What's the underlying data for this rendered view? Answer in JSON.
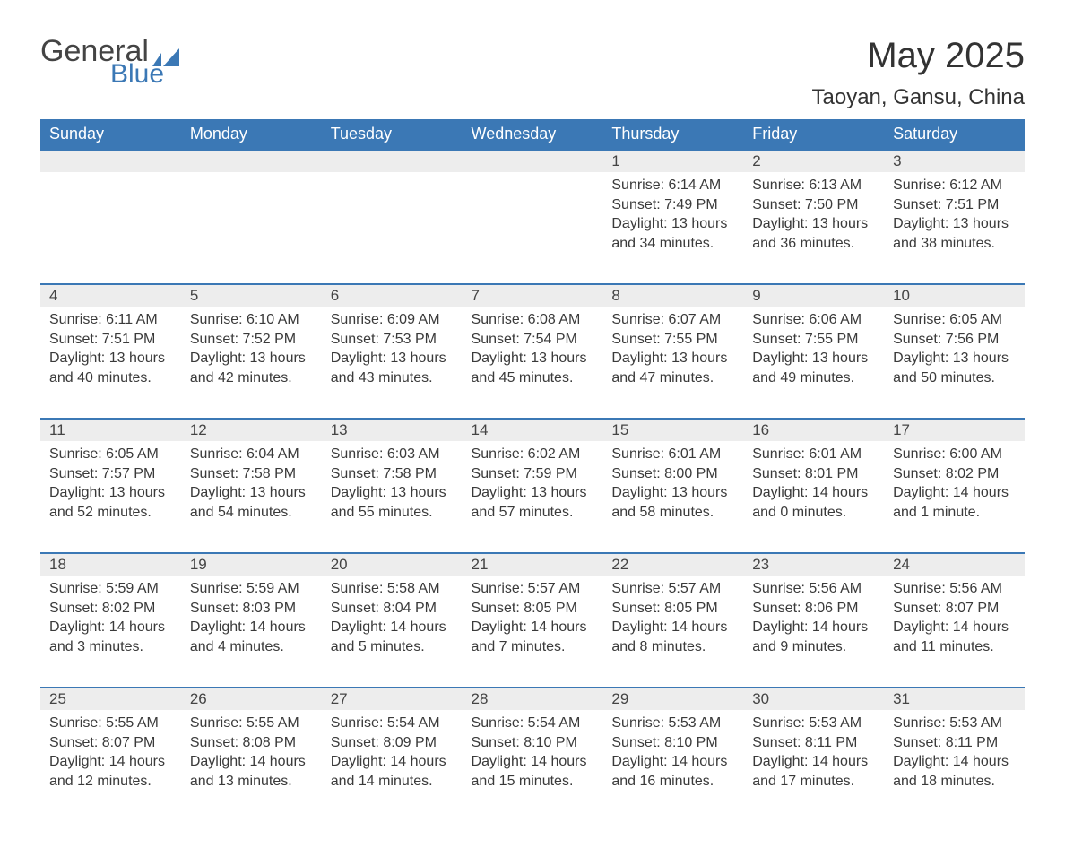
{
  "logo": {
    "general": "General",
    "blue": "Blue",
    "flag_color": "#3b78b5"
  },
  "title": "May 2025",
  "location": "Taoyan, Gansu, China",
  "colors": {
    "header_bg": "#3b78b5",
    "header_text": "#ffffff",
    "daynum_bg": "#ededed",
    "border": "#3b78b5",
    "text": "#3a3a3a"
  },
  "weekdays": [
    "Sunday",
    "Monday",
    "Tuesday",
    "Wednesday",
    "Thursday",
    "Friday",
    "Saturday"
  ],
  "weeks": [
    [
      null,
      null,
      null,
      null,
      {
        "n": "1",
        "sr": "Sunrise: 6:14 AM",
        "ss": "Sunset: 7:49 PM",
        "dl": "Daylight: 13 hours and 34 minutes."
      },
      {
        "n": "2",
        "sr": "Sunrise: 6:13 AM",
        "ss": "Sunset: 7:50 PM",
        "dl": "Daylight: 13 hours and 36 minutes."
      },
      {
        "n": "3",
        "sr": "Sunrise: 6:12 AM",
        "ss": "Sunset: 7:51 PM",
        "dl": "Daylight: 13 hours and 38 minutes."
      }
    ],
    [
      {
        "n": "4",
        "sr": "Sunrise: 6:11 AM",
        "ss": "Sunset: 7:51 PM",
        "dl": "Daylight: 13 hours and 40 minutes."
      },
      {
        "n": "5",
        "sr": "Sunrise: 6:10 AM",
        "ss": "Sunset: 7:52 PM",
        "dl": "Daylight: 13 hours and 42 minutes."
      },
      {
        "n": "6",
        "sr": "Sunrise: 6:09 AM",
        "ss": "Sunset: 7:53 PM",
        "dl": "Daylight: 13 hours and 43 minutes."
      },
      {
        "n": "7",
        "sr": "Sunrise: 6:08 AM",
        "ss": "Sunset: 7:54 PM",
        "dl": "Daylight: 13 hours and 45 minutes."
      },
      {
        "n": "8",
        "sr": "Sunrise: 6:07 AM",
        "ss": "Sunset: 7:55 PM",
        "dl": "Daylight: 13 hours and 47 minutes."
      },
      {
        "n": "9",
        "sr": "Sunrise: 6:06 AM",
        "ss": "Sunset: 7:55 PM",
        "dl": "Daylight: 13 hours and 49 minutes."
      },
      {
        "n": "10",
        "sr": "Sunrise: 6:05 AM",
        "ss": "Sunset: 7:56 PM",
        "dl": "Daylight: 13 hours and 50 minutes."
      }
    ],
    [
      {
        "n": "11",
        "sr": "Sunrise: 6:05 AM",
        "ss": "Sunset: 7:57 PM",
        "dl": "Daylight: 13 hours and 52 minutes."
      },
      {
        "n": "12",
        "sr": "Sunrise: 6:04 AM",
        "ss": "Sunset: 7:58 PM",
        "dl": "Daylight: 13 hours and 54 minutes."
      },
      {
        "n": "13",
        "sr": "Sunrise: 6:03 AM",
        "ss": "Sunset: 7:58 PM",
        "dl": "Daylight: 13 hours and 55 minutes."
      },
      {
        "n": "14",
        "sr": "Sunrise: 6:02 AM",
        "ss": "Sunset: 7:59 PM",
        "dl": "Daylight: 13 hours and 57 minutes."
      },
      {
        "n": "15",
        "sr": "Sunrise: 6:01 AM",
        "ss": "Sunset: 8:00 PM",
        "dl": "Daylight: 13 hours and 58 minutes."
      },
      {
        "n": "16",
        "sr": "Sunrise: 6:01 AM",
        "ss": "Sunset: 8:01 PM",
        "dl": "Daylight: 14 hours and 0 minutes."
      },
      {
        "n": "17",
        "sr": "Sunrise: 6:00 AM",
        "ss": "Sunset: 8:02 PM",
        "dl": "Daylight: 14 hours and 1 minute."
      }
    ],
    [
      {
        "n": "18",
        "sr": "Sunrise: 5:59 AM",
        "ss": "Sunset: 8:02 PM",
        "dl": "Daylight: 14 hours and 3 minutes."
      },
      {
        "n": "19",
        "sr": "Sunrise: 5:59 AM",
        "ss": "Sunset: 8:03 PM",
        "dl": "Daylight: 14 hours and 4 minutes."
      },
      {
        "n": "20",
        "sr": "Sunrise: 5:58 AM",
        "ss": "Sunset: 8:04 PM",
        "dl": "Daylight: 14 hours and 5 minutes."
      },
      {
        "n": "21",
        "sr": "Sunrise: 5:57 AM",
        "ss": "Sunset: 8:05 PM",
        "dl": "Daylight: 14 hours and 7 minutes."
      },
      {
        "n": "22",
        "sr": "Sunrise: 5:57 AM",
        "ss": "Sunset: 8:05 PM",
        "dl": "Daylight: 14 hours and 8 minutes."
      },
      {
        "n": "23",
        "sr": "Sunrise: 5:56 AM",
        "ss": "Sunset: 8:06 PM",
        "dl": "Daylight: 14 hours and 9 minutes."
      },
      {
        "n": "24",
        "sr": "Sunrise: 5:56 AM",
        "ss": "Sunset: 8:07 PM",
        "dl": "Daylight: 14 hours and 11 minutes."
      }
    ],
    [
      {
        "n": "25",
        "sr": "Sunrise: 5:55 AM",
        "ss": "Sunset: 8:07 PM",
        "dl": "Daylight: 14 hours and 12 minutes."
      },
      {
        "n": "26",
        "sr": "Sunrise: 5:55 AM",
        "ss": "Sunset: 8:08 PM",
        "dl": "Daylight: 14 hours and 13 minutes."
      },
      {
        "n": "27",
        "sr": "Sunrise: 5:54 AM",
        "ss": "Sunset: 8:09 PM",
        "dl": "Daylight: 14 hours and 14 minutes."
      },
      {
        "n": "28",
        "sr": "Sunrise: 5:54 AM",
        "ss": "Sunset: 8:10 PM",
        "dl": "Daylight: 14 hours and 15 minutes."
      },
      {
        "n": "29",
        "sr": "Sunrise: 5:53 AM",
        "ss": "Sunset: 8:10 PM",
        "dl": "Daylight: 14 hours and 16 minutes."
      },
      {
        "n": "30",
        "sr": "Sunrise: 5:53 AM",
        "ss": "Sunset: 8:11 PM",
        "dl": "Daylight: 14 hours and 17 minutes."
      },
      {
        "n": "31",
        "sr": "Sunrise: 5:53 AM",
        "ss": "Sunset: 8:11 PM",
        "dl": "Daylight: 14 hours and 18 minutes."
      }
    ]
  ]
}
